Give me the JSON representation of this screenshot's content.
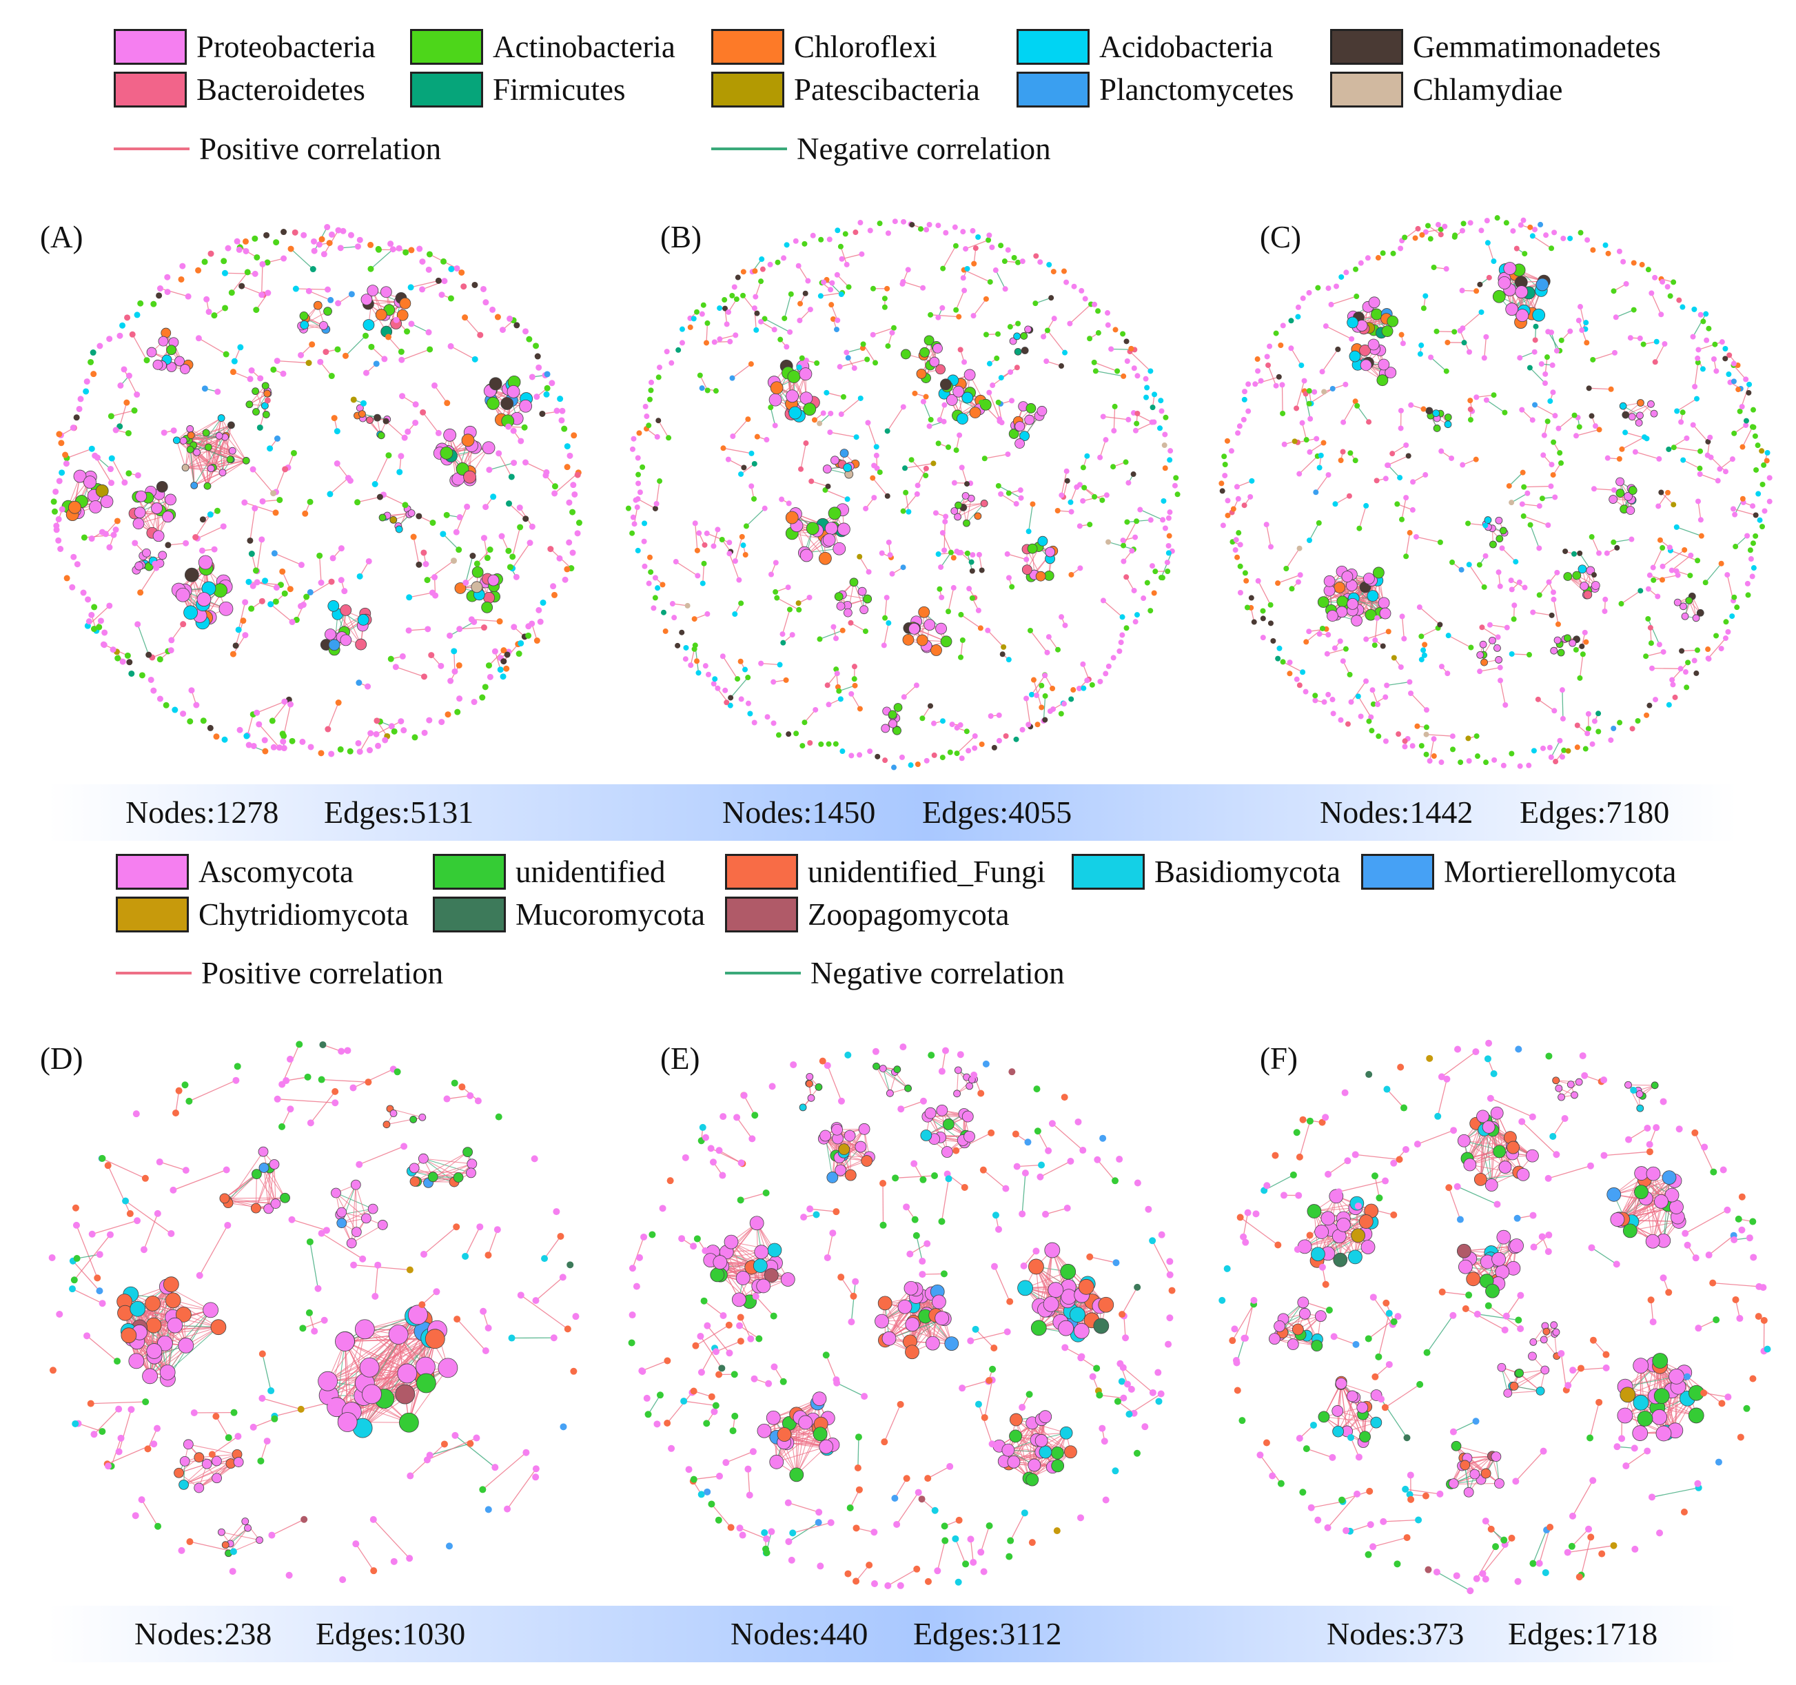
{
  "bacteria_legend": {
    "phyla": [
      {
        "label": "Proteobacteria",
        "color": "#f57ff0"
      },
      {
        "label": "Actinobacteria",
        "color": "#4dd61a"
      },
      {
        "label": "Chloroflexi",
        "color": "#fd7a28"
      },
      {
        "label": "Acidobacteria",
        "color": "#00d4f3"
      },
      {
        "label": "Gemmatimonadetes",
        "color": "#4a3a34"
      },
      {
        "label": "Bacteroidetes",
        "color": "#f2648a"
      },
      {
        "label": "Firmicutes",
        "color": "#06a57a"
      },
      {
        "label": "Patescibacteria",
        "color": "#b39a02"
      },
      {
        "label": "Planctomycetes",
        "color": "#3a9ff0"
      },
      {
        "label": "Chlamydiae",
        "color": "#d1b9a0"
      }
    ],
    "positive": "Positive correlation",
    "negative": "Negative correlation"
  },
  "fungi_legend": {
    "phyla": [
      {
        "label": "Ascomycota",
        "color": "#f57ff0"
      },
      {
        "label": "unidentified",
        "color": "#35cc35"
      },
      {
        "label": "unidentified_Fungi",
        "color": "#f86c46"
      },
      {
        "label": "Basidiomycota",
        "color": "#14d0e6"
      },
      {
        "label": "Mortierellomycota",
        "color": "#46a1f5"
      },
      {
        "label": "Chytridiomycota",
        "color": "#c79a0c"
      },
      {
        "label": "Mucoromycota",
        "color": "#3d7a5a"
      },
      {
        "label": "Zoopagomycota",
        "color": "#b05a68"
      }
    ],
    "positive": "Positive correlation",
    "negative": "Negative correlation"
  },
  "colors": {
    "positive_edge": "#ee6f86",
    "negative_edge": "#3aa97a"
  },
  "panels": [
    {
      "id": "A",
      "label": "(A)",
      "nodes_text": "Nodes:1278",
      "edges_text": "Edges:5131"
    },
    {
      "id": "B",
      "label": "(B)",
      "nodes_text": "Nodes:1450",
      "edges_text": "Edges:4055"
    },
    {
      "id": "C",
      "label": "(C)",
      "nodes_text": "Nodes:1442",
      "edges_text": "Edges:7180"
    },
    {
      "id": "D",
      "label": "(D)",
      "nodes_text": "Nodes:238",
      "edges_text": "Edges:1030"
    },
    {
      "id": "E",
      "label": "(E)",
      "nodes_text": "Nodes:440",
      "edges_text": "Edges:3112"
    },
    {
      "id": "F",
      "label": "(F)",
      "nodes_text": "Nodes:373",
      "edges_text": "Edges:1718"
    }
  ]
}
